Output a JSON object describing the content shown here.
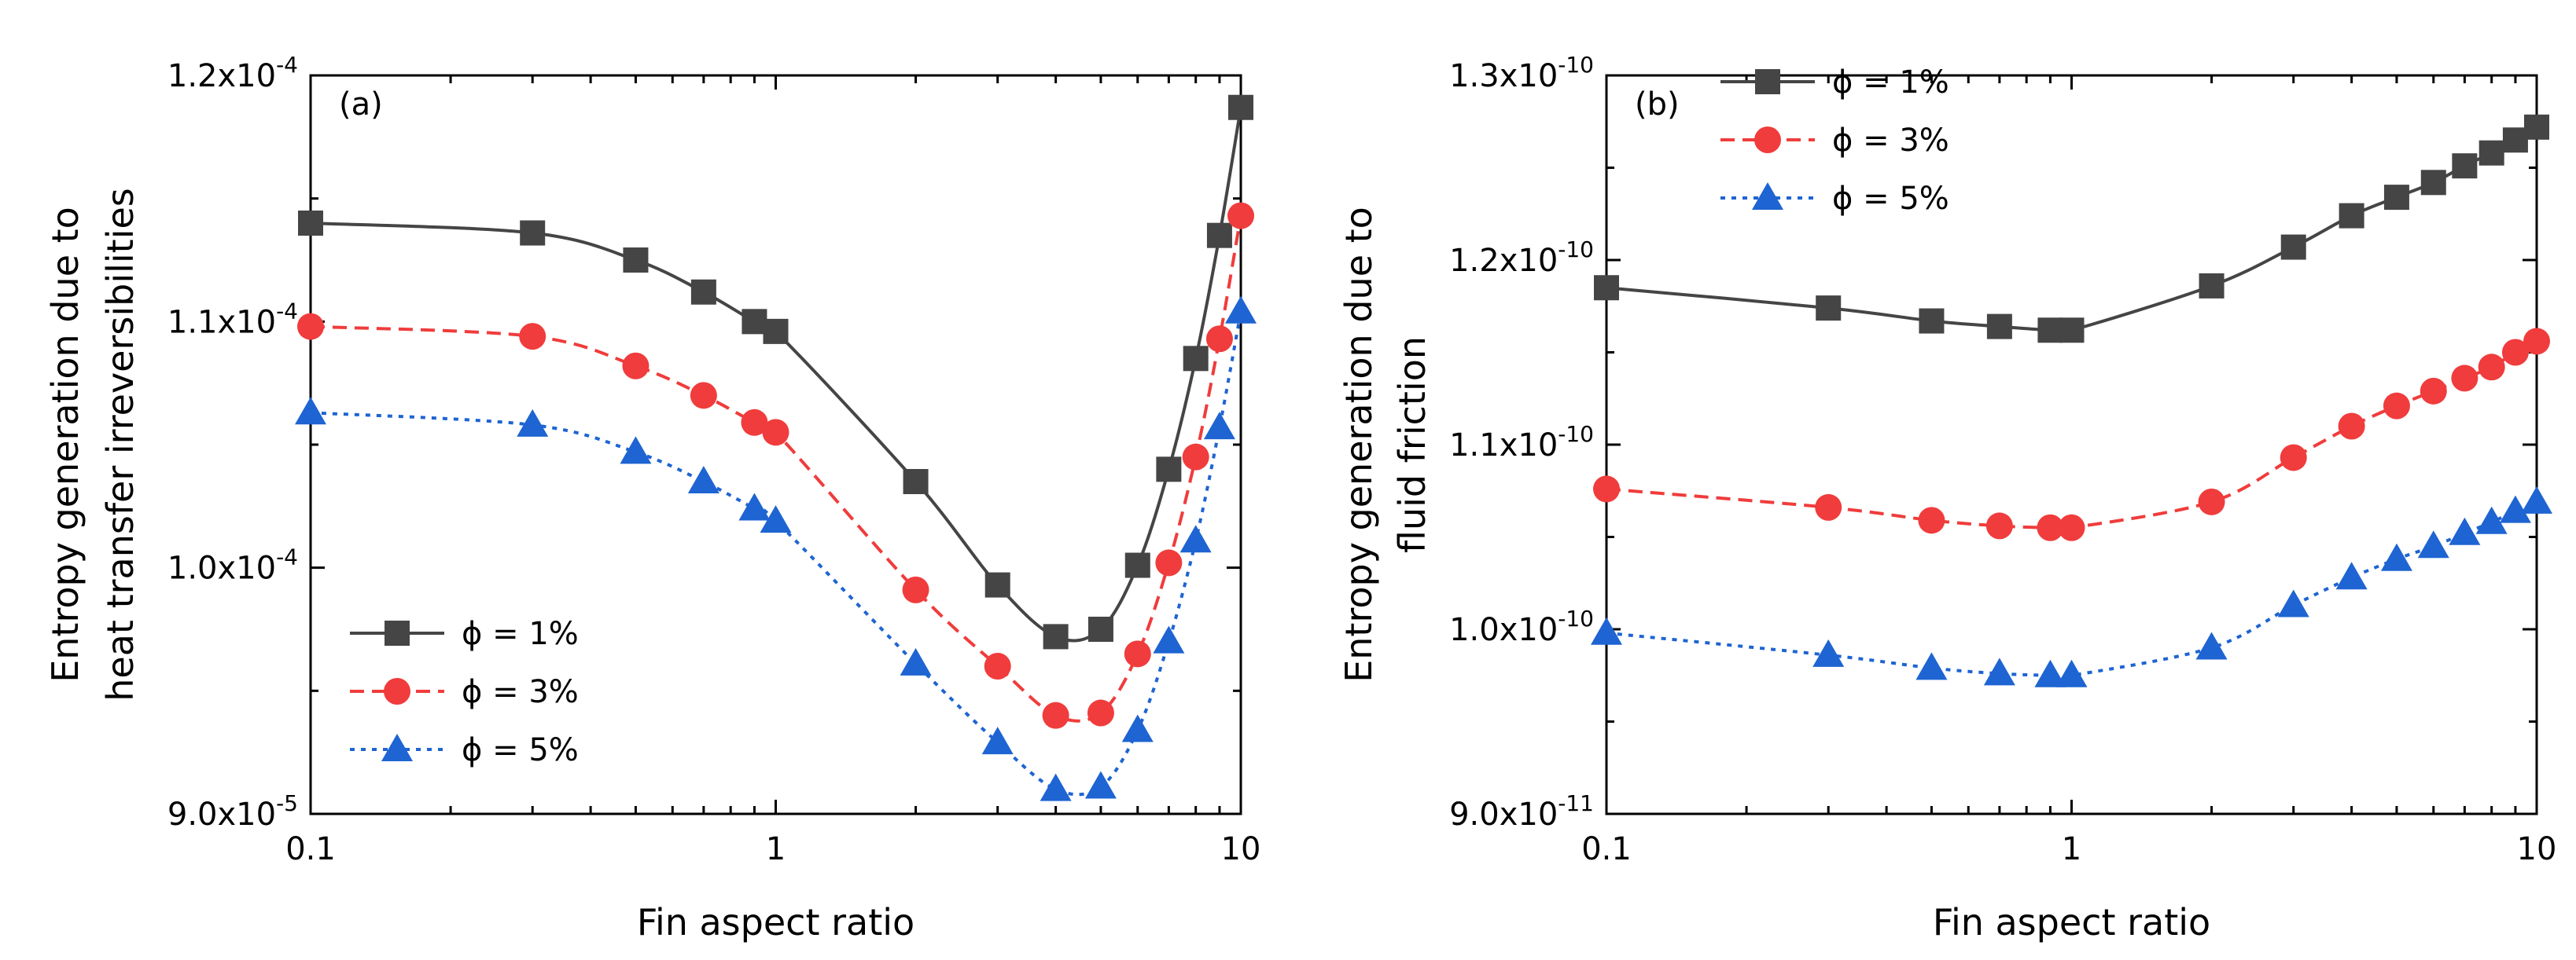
{
  "chart_data": [
    {
      "type": "line",
      "panel_label": "(a)",
      "xlabel": "Fin aspect ratio",
      "ylabel_lines": [
        "Entropy generation due to",
        "heat transfer irreversibilities"
      ],
      "xscale": "log",
      "xlim": [
        0.1,
        10
      ],
      "ylim": [
        9e-05,
        0.00012
      ],
      "xticks": [
        {
          "value": 0.1,
          "label": "0.1"
        },
        {
          "value": 1,
          "label": "1"
        },
        {
          "value": 10,
          "label": "10"
        }
      ],
      "yticks": [
        {
          "value": 9e-05,
          "mant": "9.0x10",
          "exp": "-5"
        },
        {
          "value": 0.0001,
          "mant": "1.0x10",
          "exp": "-4"
        },
        {
          "value": 0.00011,
          "mant": "1.1x10",
          "exp": "-4"
        },
        {
          "value": 0.00012,
          "mant": "1.2x10",
          "exp": "-4"
        }
      ],
      "legend_position": "bottom-left",
      "series": [
        {
          "name": "ϕ = 1%",
          "color": "#454545",
          "marker": "square",
          "dash": "solid",
          "x": [
            0.1,
            0.3,
            0.5,
            0.7,
            0.9,
            1.0,
            2.0,
            3.0,
            4.0,
            5.0,
            6.0,
            7.0,
            8.0,
            9.0,
            10.0
          ],
          "y": [
            0.000114,
            0.0001136,
            0.0001125,
            0.0001112,
            0.00011,
            0.0001096,
            0.0001035,
            9.93e-05,
            9.72e-05,
            9.75e-05,
            0.0001001,
            0.000104,
            0.0001085,
            0.0001135,
            0.0001187
          ]
        },
        {
          "name": "ϕ = 3%",
          "color": "#f03c3c",
          "marker": "circle",
          "dash": "dashed",
          "x": [
            0.1,
            0.3,
            0.5,
            0.7,
            0.9,
            1.0,
            2.0,
            3.0,
            4.0,
            5.0,
            6.0,
            7.0,
            8.0,
            9.0,
            10.0
          ],
          "y": [
            0.0001098,
            0.0001094,
            0.0001082,
            0.000107,
            0.0001059,
            0.0001055,
            9.91e-05,
            9.6e-05,
            9.4e-05,
            9.41e-05,
            9.65e-05,
            0.0001002,
            0.0001045,
            0.0001093,
            0.0001143
          ]
        },
        {
          "name": "ϕ = 5%",
          "color": "#1e64d2",
          "marker": "triangle",
          "dash": "dotted",
          "x": [
            0.1,
            0.3,
            0.5,
            0.7,
            0.9,
            1.0,
            2.0,
            3.0,
            4.0,
            5.0,
            6.0,
            7.0,
            8.0,
            9.0,
            10.0
          ],
          "y": [
            0.0001063,
            0.0001058,
            0.0001047,
            0.0001035,
            0.0001024,
            0.0001019,
            9.61e-05,
            9.29e-05,
            9.1e-05,
            9.11e-05,
            9.34e-05,
            9.7e-05,
            0.0001011,
            0.0001057,
            0.0001104
          ]
        }
      ]
    },
    {
      "type": "line",
      "panel_label": "(b)",
      "xlabel": "Fin aspect ratio",
      "ylabel_lines": [
        "Entropy generation due to",
        "fluid friction"
      ],
      "xscale": "log",
      "xlim": [
        0.1,
        10
      ],
      "ylim": [
        9e-11,
        1.3e-10
      ],
      "xticks": [
        {
          "value": 0.1,
          "label": "0.1"
        },
        {
          "value": 1,
          "label": "1"
        },
        {
          "value": 10,
          "label": "10"
        }
      ],
      "yticks": [
        {
          "value": 9e-11,
          "mant": "9.0x10",
          "exp": "-11"
        },
        {
          "value": 1e-10,
          "mant": "1.0x10",
          "exp": "-10"
        },
        {
          "value": 1.1e-10,
          "mant": "1.1x10",
          "exp": "-10"
        },
        {
          "value": 1.2e-10,
          "mant": "1.2x10",
          "exp": "-10"
        },
        {
          "value": 1.3e-10,
          "mant": "1.3x10",
          "exp": "-10"
        }
      ],
      "legend_position": "top-left",
      "series": [
        {
          "name": "ϕ = 1%",
          "color": "#454545",
          "marker": "square",
          "dash": "solid",
          "x": [
            0.1,
            0.3,
            0.5,
            0.7,
            0.9,
            1.0,
            2.0,
            3.0,
            4.0,
            5.0,
            6.0,
            7.0,
            8.0,
            9.0,
            10.0
          ],
          "y": [
            1.185e-10,
            1.174e-10,
            1.167e-10,
            1.164e-10,
            1.162e-10,
            1.162e-10,
            1.186e-10,
            1.207e-10,
            1.224e-10,
            1.234e-10,
            1.242e-10,
            1.251e-10,
            1.258e-10,
            1.265e-10,
            1.272e-10
          ]
        },
        {
          "name": "ϕ = 3%",
          "color": "#f03c3c",
          "marker": "circle",
          "dash": "dashed",
          "x": [
            0.1,
            0.3,
            0.5,
            0.7,
            0.9,
            1.0,
            2.0,
            3.0,
            4.0,
            5.0,
            6.0,
            7.0,
            8.0,
            9.0,
            10.0
          ],
          "y": [
            1.076e-10,
            1.066e-10,
            1.059e-10,
            1.056e-10,
            1.055e-10,
            1.055e-10,
            1.069e-10,
            1.093e-10,
            1.11e-10,
            1.121e-10,
            1.129e-10,
            1.136e-10,
            1.142e-10,
            1.15e-10,
            1.156e-10
          ]
        },
        {
          "name": "ϕ = 5%",
          "color": "#1e64d2",
          "marker": "triangle",
          "dash": "dotted",
          "x": [
            0.1,
            0.3,
            0.5,
            0.7,
            0.9,
            1.0,
            2.0,
            3.0,
            4.0,
            5.0,
            6.0,
            7.0,
            8.0,
            9.0,
            10.0
          ],
          "y": [
            9.98e-11,
            9.86e-11,
            9.79e-11,
            9.76e-11,
            9.75e-11,
            9.75e-11,
            9.9e-11,
            1.013e-10,
            1.028e-10,
            1.038e-10,
            1.045e-10,
            1.052e-10,
            1.058e-10,
            1.064e-10,
            1.069e-10
          ]
        }
      ]
    }
  ]
}
